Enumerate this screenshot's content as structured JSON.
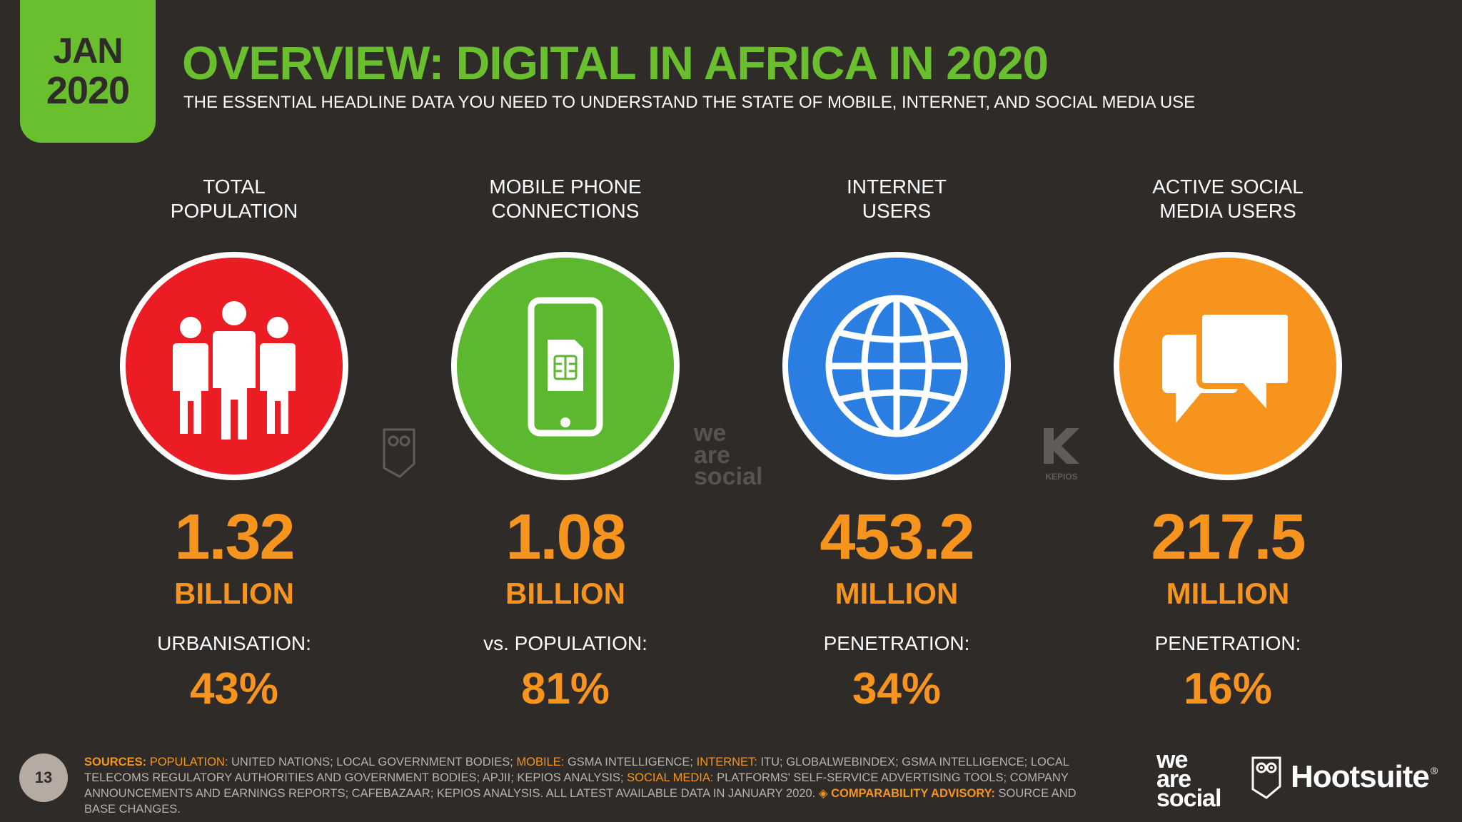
{
  "header": {
    "date_month": "JAN",
    "date_year": "2020",
    "title": "OVERVIEW: DIGITAL IN AFRICA IN 2020",
    "subtitle": "THE ESSENTIAL HEADLINE DATA YOU NEED TO UNDERSTAND THE STATE OF MOBILE, INTERNET, AND SOCIAL MEDIA USE"
  },
  "stats": [
    {
      "label_line1": "TOTAL",
      "label_line2": "POPULATION",
      "icon": "people-icon",
      "circle_color": "#ec1c24",
      "value": "1.32",
      "unit": "BILLION",
      "sublabel": "URBANISATION:",
      "subvalue": "43%"
    },
    {
      "label_line1": "MOBILE PHONE",
      "label_line2": "CONNECTIONS",
      "icon": "mobile-phone-icon",
      "circle_color": "#5cb82e",
      "value": "1.08",
      "unit": "BILLION",
      "sublabel": "vs. POPULATION:",
      "subvalue": "81%"
    },
    {
      "label_line1": "INTERNET",
      "label_line2": "USERS",
      "icon": "globe-icon",
      "circle_color": "#2a7de1",
      "value": "453.2",
      "unit": "MILLION",
      "sublabel": "PENETRATION:",
      "subvalue": "34%"
    },
    {
      "label_line1": "ACTIVE SOCIAL",
      "label_line2": "MEDIA USERS",
      "icon": "speech-bubbles-icon",
      "circle_color": "#f7941d",
      "value": "217.5",
      "unit": "MILLION",
      "sublabel": "PENETRATION:",
      "subvalue": "16%"
    }
  ],
  "watermarks": {
    "we_are_social": [
      "we",
      "are",
      "social"
    ],
    "kepios": "KEPIOS"
  },
  "footer": {
    "page_number": "13",
    "sources_label": "SOURCES:",
    "population_label": "POPULATION:",
    "population_text": "UNITED NATIONS; LOCAL GOVERNMENT BODIES;",
    "mobile_label": "MOBILE:",
    "mobile_text": "GSMA INTELLIGENCE;",
    "internet_label": "INTERNET:",
    "internet_text": "ITU; GLOBALWEBINDEX; GSMA INTELLIGENCE; LOCAL TELECOMS REGULATORY AUTHORITIES AND GOVERNMENT BODIES; APJII; KEPIOS ANALYSIS;",
    "social_label": "SOCIAL MEDIA:",
    "social_text": "PLATFORMS' SELF-SERVICE ADVERTISING TOOLS; COMPANY ANNOUNCEMENTS AND EARNINGS REPORTS; CAFEBAZAAR; KEPIOS ANALYSIS. ALL LATEST AVAILABLE DATA IN JANUARY 2020.",
    "advisory_label": "◈ COMPARABILITY ADVISORY:",
    "advisory_text": "SOURCE AND BASE CHANGES.",
    "logo_was": [
      "we",
      "are",
      "social"
    ],
    "logo_hootsuite": "Hootsuite",
    "logo_hootsuite_mark": "®"
  }
}
